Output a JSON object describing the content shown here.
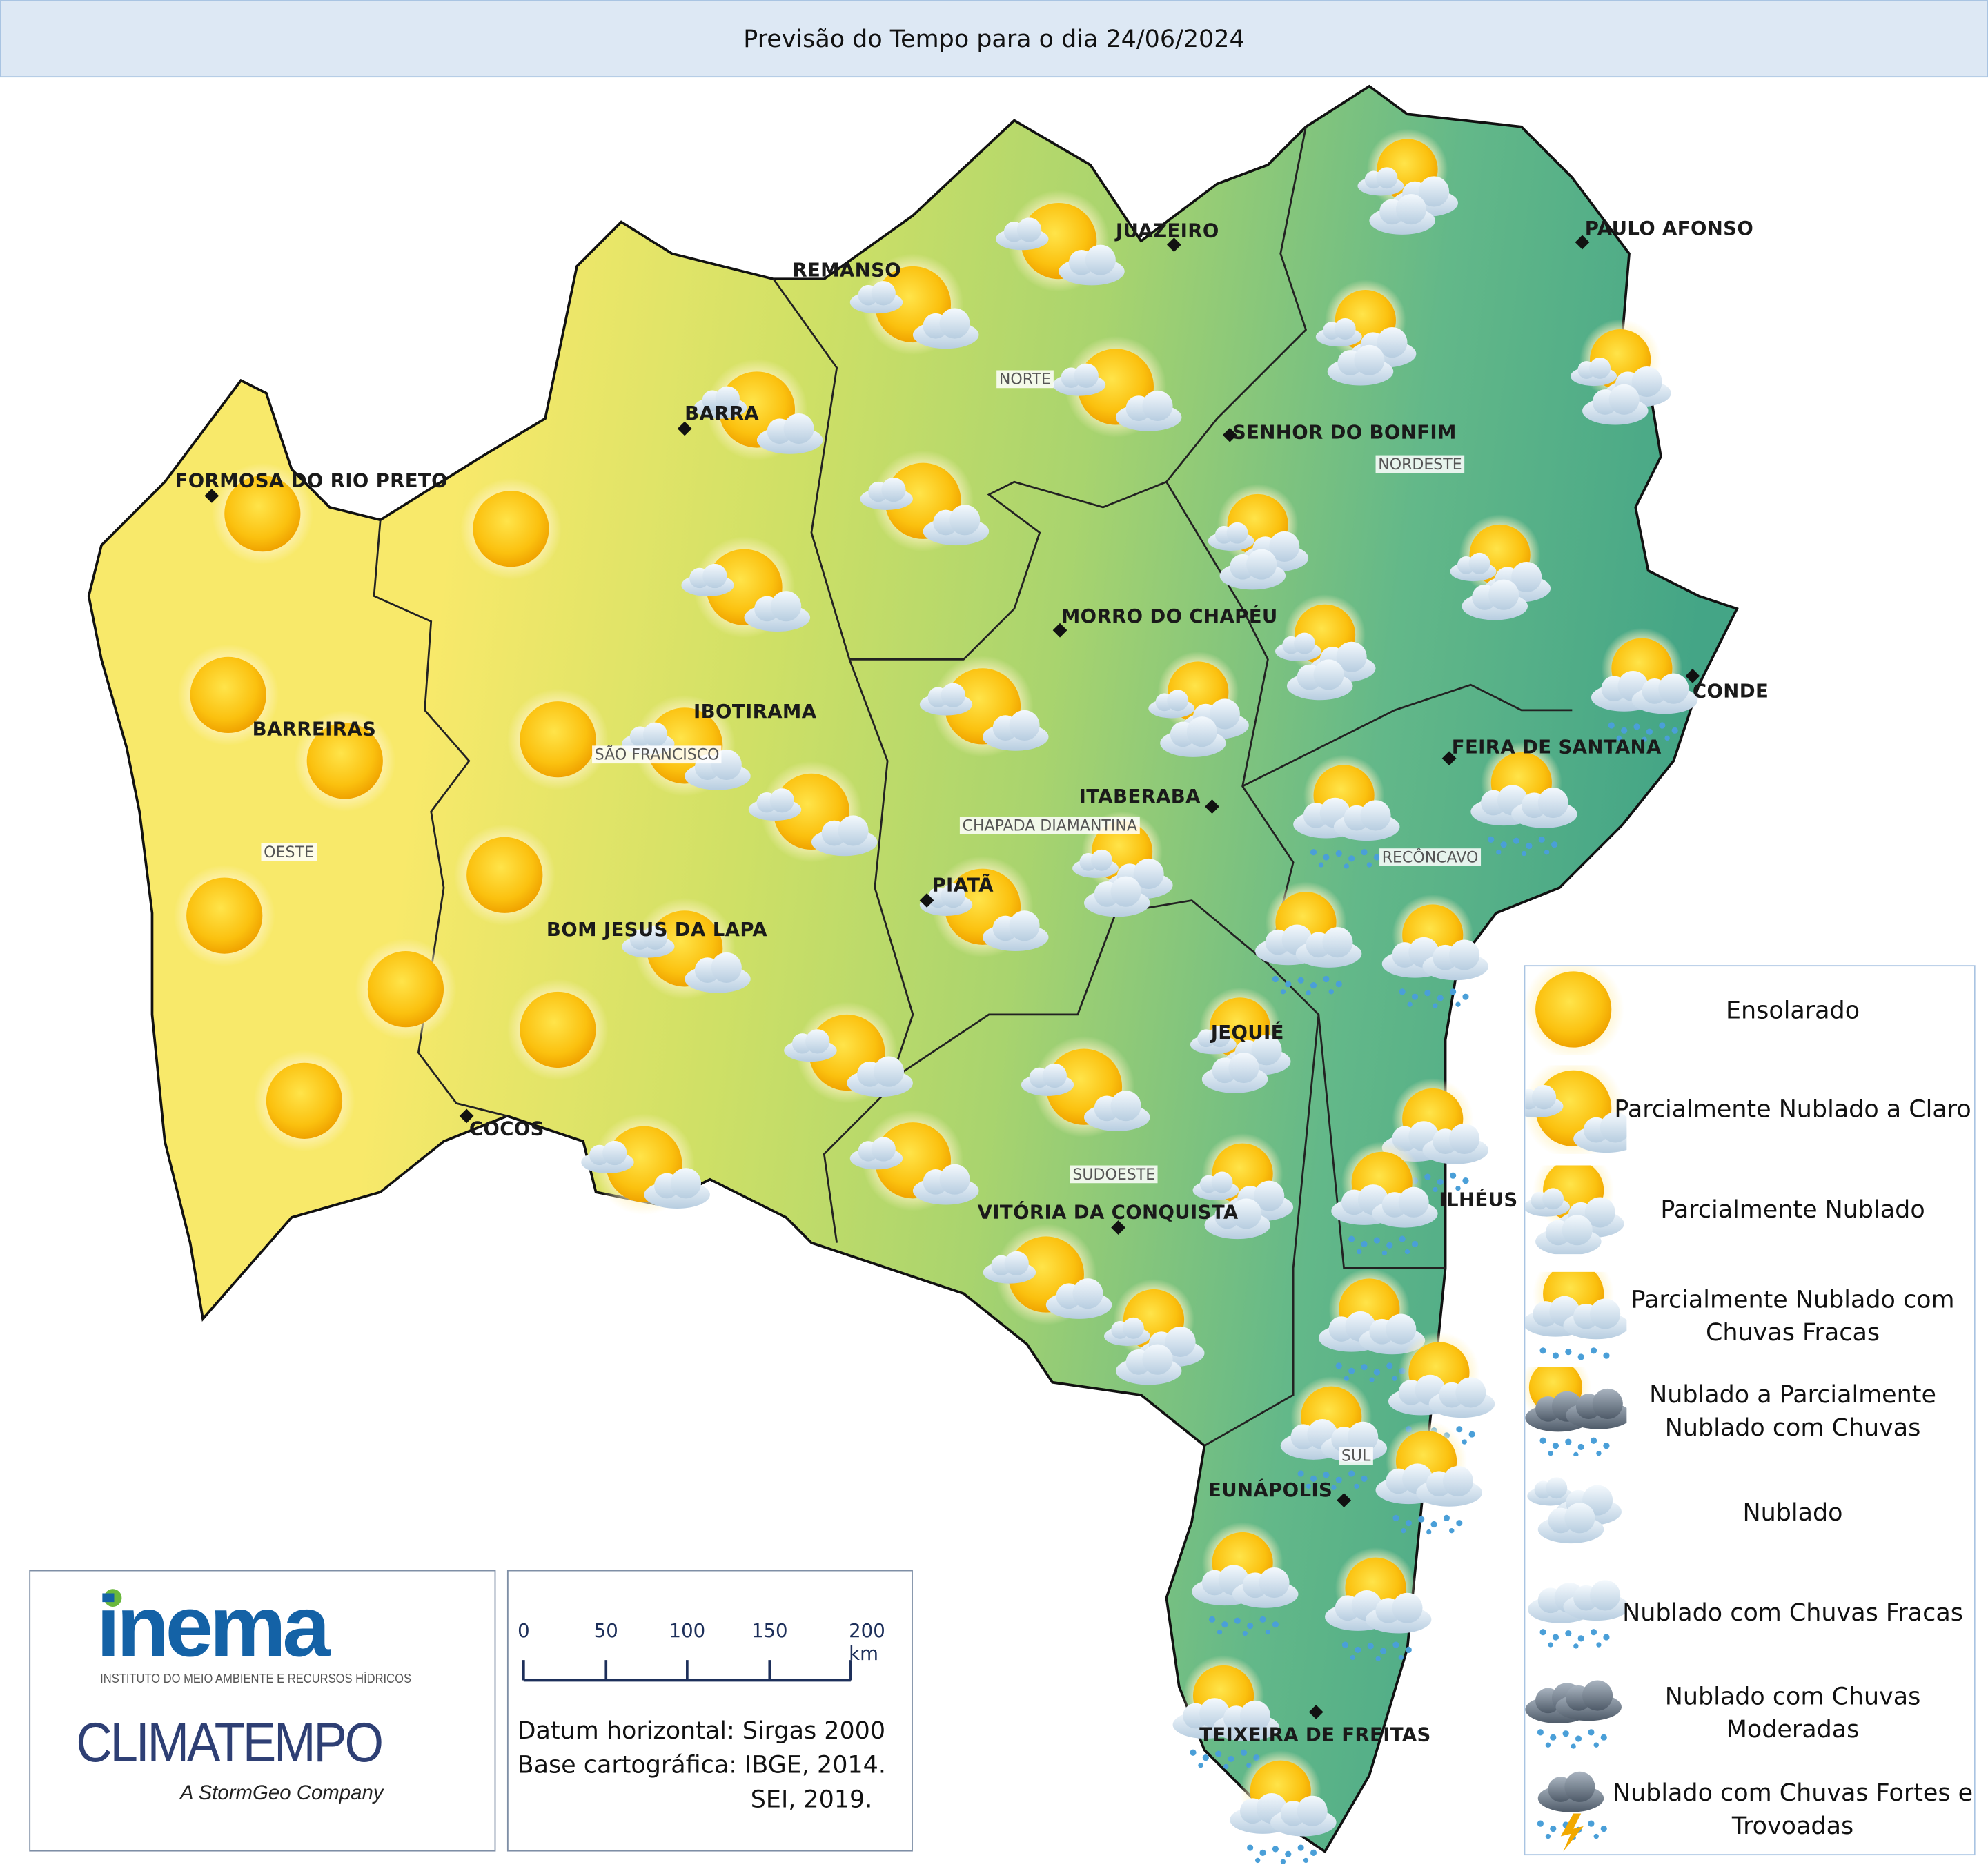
{
  "title": "Previsão do Tempo para o dia 24/06/2024",
  "colors": {
    "west": "#f8e96a",
    "center": "#c5dc63",
    "east": "#4fae8b",
    "title_bg": "#dde8f4",
    "border": "#111111"
  },
  "cities": {
    "juazeiro": "JUAZEIRO",
    "paulo_afonso": "PAULO AFONSO",
    "remanso": "REMANSO",
    "barra": "BARRA",
    "senhor_do_bonfim": "SENHOR DO BONFIM",
    "formosa": "FORMOSA DO RIO PRETO",
    "morro": "MORRO DO CHAPÉU",
    "conde": "CONDE",
    "ibotirama": "IBOTIRAMA",
    "barreiras": "BARREIRAS",
    "feira": "FEIRA DE SANTANA",
    "itaberaba": "ITABERABA",
    "piata": "PIATÃ",
    "bom_jesus": "BOM JESUS DA LAPA",
    "jequie": "JEQUIÉ",
    "cocos": "COCOS",
    "ilheus": "ILHÉUS",
    "vitoria": "VITÓRIA DA CONQUISTA",
    "eunapolis": "EUNÁPOLIS",
    "teixeira": "TEIXEIRA DE FREITAS"
  },
  "regions": {
    "norte": "NORTE",
    "nordeste": "NORDESTE",
    "sao_francisco": "SÃO FRANCISCO",
    "chapada": "CHAPADA DIAMANTINA",
    "reconcavo": "RECÔNCAVO",
    "oeste": "OESTE",
    "sudoeste": "SUDOESTE",
    "sul": "SUL"
  },
  "legend": [
    {
      "icon": "sun-icon",
      "label": "Ensolarado"
    },
    {
      "icon": "sun-small-cloud-icon",
      "label": "Parcialmente Nublado a Claro"
    },
    {
      "icon": "sun-clouds-icon",
      "label": "Parcialmente Nublado"
    },
    {
      "icon": "sun-clouds-light-rain-icon",
      "label": "Parcialmente Nublado com Chuvas Fracas"
    },
    {
      "icon": "sun-dark-clouds-rain-icon",
      "label": "Nublado a Parcialmente Nublado com Chuvas"
    },
    {
      "icon": "clouds-icon",
      "label": "Nublado"
    },
    {
      "icon": "clouds-light-rain-icon",
      "label": "Nublado com Chuvas Fracas"
    },
    {
      "icon": "dark-clouds-rain-icon",
      "label": "Nublado com Chuvas Moderadas"
    },
    {
      "icon": "storm-icon",
      "label": "Nublado com Chuvas Fortes e Trovoadas"
    }
  ],
  "logos": {
    "inema": "inema",
    "inema_sub": "INSTITUTO DO MEIO AMBIENTE E RECURSOS HÍDRICOS",
    "climatempo": "CLIMATEMPO",
    "climatempo_sub": "A StormGeo Company"
  },
  "scale": {
    "ticks": [
      "0",
      "50",
      "100",
      "150",
      "200 km"
    ]
  },
  "datum": {
    "line1": "Datum horizontal: Sirgas 2000",
    "line2": "Base cartográfica: IBGE, 2014.",
    "line3": "SEI, 2019."
  }
}
